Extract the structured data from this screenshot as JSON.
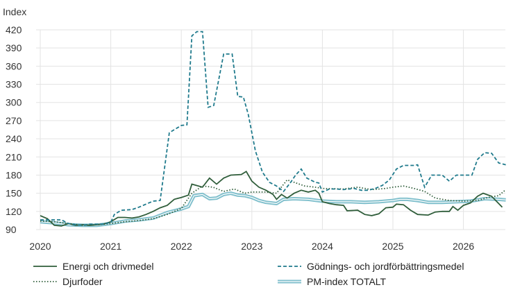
{
  "chart_data": {
    "type": "line",
    "ylabel": "Index",
    "ylim": [
      90,
      420
    ],
    "yticks": [
      90,
      120,
      150,
      180,
      210,
      240,
      270,
      300,
      330,
      360,
      390,
      420
    ],
    "xticks": [
      "2020",
      "2021",
      "2022",
      "2023",
      "2024",
      "2025",
      "2026"
    ],
    "xlim": [
      2020.0,
      2026.6
    ],
    "grid": true,
    "legend_position": "bottom",
    "colors": {
      "energi": "#2f5d3a",
      "godning": "#1f7a8c",
      "djurfoder": "#2f5d3a",
      "pm": "#7fbfcc",
      "pm_core": "#2f6f7a",
      "grid": "#e3e3e3"
    },
    "series": [
      {
        "key": "energi",
        "name": "Energi och drivmedel",
        "style": "solid",
        "points": [
          [
            2020.0,
            113
          ],
          [
            2020.1,
            108
          ],
          [
            2020.2,
            97
          ],
          [
            2020.3,
            96
          ],
          [
            2020.4,
            100
          ],
          [
            2020.5,
            97
          ],
          [
            2020.6,
            98
          ],
          [
            2020.7,
            97
          ],
          [
            2020.8,
            98
          ],
          [
            2020.9,
            99
          ],
          [
            2021.0,
            103
          ],
          [
            2021.1,
            110
          ],
          [
            2021.2,
            110
          ],
          [
            2021.3,
            109
          ],
          [
            2021.4,
            111
          ],
          [
            2021.5,
            115
          ],
          [
            2021.6,
            120
          ],
          [
            2021.7,
            126
          ],
          [
            2021.8,
            130
          ],
          [
            2021.9,
            140
          ],
          [
            2022.0,
            143
          ],
          [
            2022.1,
            147
          ],
          [
            2022.15,
            165
          ],
          [
            2022.3,
            160
          ],
          [
            2022.4,
            175
          ],
          [
            2022.5,
            165
          ],
          [
            2022.6,
            175
          ],
          [
            2022.7,
            180
          ],
          [
            2022.85,
            181
          ],
          [
            2022.92,
            186
          ],
          [
            2023.0,
            170
          ],
          [
            2023.1,
            160
          ],
          [
            2023.2,
            155
          ],
          [
            2023.3,
            148
          ],
          [
            2023.35,
            140
          ],
          [
            2023.42,
            148
          ],
          [
            2023.5,
            142
          ],
          [
            2023.6,
            150
          ],
          [
            2023.7,
            155
          ],
          [
            2023.8,
            152
          ],
          [
            2023.9,
            155
          ],
          [
            2023.95,
            150
          ],
          [
            2024.0,
            136
          ],
          [
            2024.1,
            133
          ],
          [
            2024.2,
            131
          ],
          [
            2024.3,
            130
          ],
          [
            2024.35,
            121
          ],
          [
            2024.5,
            122
          ],
          [
            2024.6,
            115
          ],
          [
            2024.7,
            113
          ],
          [
            2024.8,
            116
          ],
          [
            2024.9,
            126
          ],
          [
            2025.0,
            127
          ],
          [
            2025.05,
            132
          ],
          [
            2025.15,
            131
          ],
          [
            2025.25,
            122
          ],
          [
            2025.35,
            115
          ],
          [
            2025.5,
            114
          ],
          [
            2025.6,
            119
          ],
          [
            2025.7,
            120
          ],
          [
            2025.8,
            120
          ],
          [
            2025.85,
            128
          ],
          [
            2025.92,
            122
          ],
          [
            2026.0,
            130
          ],
          [
            2026.1,
            134
          ],
          [
            2026.2,
            145
          ],
          [
            2026.28,
            150
          ],
          [
            2026.4,
            145
          ],
          [
            2026.55,
            127
          ]
        ]
      },
      {
        "key": "godning",
        "name": "Gödnings- och jordförbättringsmedel",
        "style": "dashed",
        "points": [
          [
            2020.0,
            106
          ],
          [
            2020.1,
            106
          ],
          [
            2020.3,
            106
          ],
          [
            2020.4,
            100
          ],
          [
            2020.5,
            98
          ],
          [
            2020.6,
            97
          ],
          [
            2020.7,
            99
          ],
          [
            2020.8,
            99
          ],
          [
            2020.9,
            99
          ],
          [
            2021.0,
            102
          ],
          [
            2021.05,
            115
          ],
          [
            2021.15,
            122
          ],
          [
            2021.3,
            123
          ],
          [
            2021.4,
            127
          ],
          [
            2021.5,
            132
          ],
          [
            2021.6,
            137
          ],
          [
            2021.7,
            138
          ],
          [
            2021.83,
            250
          ],
          [
            2021.9,
            255
          ],
          [
            2022.0,
            262
          ],
          [
            2022.08,
            263
          ],
          [
            2022.15,
            410
          ],
          [
            2022.22,
            417
          ],
          [
            2022.3,
            417
          ],
          [
            2022.38,
            292
          ],
          [
            2022.46,
            295
          ],
          [
            2022.6,
            380
          ],
          [
            2022.72,
            380
          ],
          [
            2022.8,
            310
          ],
          [
            2022.88,
            309
          ],
          [
            2022.95,
            280
          ],
          [
            2023.05,
            220
          ],
          [
            2023.15,
            185
          ],
          [
            2023.25,
            168
          ],
          [
            2023.35,
            162
          ],
          [
            2023.45,
            153
          ],
          [
            2023.55,
            168
          ],
          [
            2023.62,
            180
          ],
          [
            2023.7,
            190
          ],
          [
            2023.78,
            175
          ],
          [
            2023.9,
            168
          ],
          [
            2023.95,
            167
          ],
          [
            2024.0,
            152
          ],
          [
            2024.1,
            157
          ],
          [
            2024.2,
            157
          ],
          [
            2024.3,
            156
          ],
          [
            2024.45,
            158
          ],
          [
            2024.55,
            155
          ],
          [
            2024.65,
            155
          ],
          [
            2024.75,
            158
          ],
          [
            2024.85,
            163
          ],
          [
            2024.95,
            172
          ],
          [
            2025.05,
            190
          ],
          [
            2025.15,
            196
          ],
          [
            2025.3,
            196
          ],
          [
            2025.35,
            197
          ],
          [
            2025.45,
            160
          ],
          [
            2025.55,
            180
          ],
          [
            2025.7,
            180
          ],
          [
            2025.8,
            170
          ],
          [
            2025.9,
            180
          ],
          [
            2026.05,
            180
          ],
          [
            2026.12,
            180
          ],
          [
            2026.2,
            206
          ],
          [
            2026.3,
            217
          ],
          [
            2026.4,
            216
          ],
          [
            2026.5,
            200
          ],
          [
            2026.6,
            197
          ]
        ]
      },
      {
        "key": "djurfoder",
        "name": "Djurfoder",
        "style": "dotted",
        "points": [
          [
            2020.0,
            104
          ],
          [
            2020.2,
            103
          ],
          [
            2020.4,
            100
          ],
          [
            2020.6,
            97
          ],
          [
            2020.8,
            98
          ],
          [
            2021.0,
            100
          ],
          [
            2021.2,
            103
          ],
          [
            2021.4,
            105
          ],
          [
            2021.6,
            108
          ],
          [
            2021.8,
            115
          ],
          [
            2022.0,
            125
          ],
          [
            2022.15,
            150
          ],
          [
            2022.3,
            162
          ],
          [
            2022.45,
            160
          ],
          [
            2022.6,
            153
          ],
          [
            2022.75,
            157
          ],
          [
            2022.9,
            150
          ],
          [
            2023.0,
            152
          ],
          [
            2023.2,
            152
          ],
          [
            2023.35,
            150
          ],
          [
            2023.5,
            172
          ],
          [
            2023.6,
            168
          ],
          [
            2023.75,
            162
          ],
          [
            2023.9,
            160
          ],
          [
            2024.0,
            158
          ],
          [
            2024.3,
            157
          ],
          [
            2024.5,
            160
          ],
          [
            2024.7,
            156
          ],
          [
            2024.9,
            158
          ],
          [
            2025.0,
            160
          ],
          [
            2025.15,
            162
          ],
          [
            2025.3,
            158
          ],
          [
            2025.45,
            153
          ],
          [
            2025.6,
            142
          ],
          [
            2025.8,
            138
          ],
          [
            2026.0,
            137
          ],
          [
            2026.2,
            138
          ],
          [
            2026.35,
            143
          ],
          [
            2026.5,
            146
          ],
          [
            2026.6,
            156
          ]
        ]
      },
      {
        "key": "pm",
        "name": "PM-index TOTALT",
        "style": "double",
        "points": [
          [
            2020.0,
            103
          ],
          [
            2020.2,
            101
          ],
          [
            2020.4,
            98
          ],
          [
            2020.6,
            97
          ],
          [
            2020.8,
            97
          ],
          [
            2021.0,
            100
          ],
          [
            2021.2,
            104
          ],
          [
            2021.4,
            106
          ],
          [
            2021.6,
            109
          ],
          [
            2021.8,
            118
          ],
          [
            2022.0,
            124
          ],
          [
            2022.1,
            128
          ],
          [
            2022.18,
            146
          ],
          [
            2022.3,
            148
          ],
          [
            2022.4,
            141
          ],
          [
            2022.5,
            142
          ],
          [
            2022.6,
            148
          ],
          [
            2022.7,
            150
          ],
          [
            2022.8,
            147
          ],
          [
            2022.9,
            146
          ],
          [
            2023.0,
            143
          ],
          [
            2023.1,
            138
          ],
          [
            2023.2,
            135
          ],
          [
            2023.35,
            133
          ],
          [
            2023.45,
            140
          ],
          [
            2023.6,
            141
          ],
          [
            2023.8,
            140
          ],
          [
            2024.0,
            137
          ],
          [
            2024.2,
            136
          ],
          [
            2024.4,
            136
          ],
          [
            2024.6,
            135
          ],
          [
            2024.8,
            136
          ],
          [
            2025.0,
            138
          ],
          [
            2025.1,
            140
          ],
          [
            2025.2,
            140
          ],
          [
            2025.35,
            138
          ],
          [
            2025.5,
            135
          ],
          [
            2025.7,
            135
          ],
          [
            2025.9,
            136
          ],
          [
            2026.1,
            137
          ],
          [
            2026.3,
            141
          ],
          [
            2026.5,
            140
          ],
          [
            2026.6,
            139
          ]
        ]
      }
    ]
  }
}
